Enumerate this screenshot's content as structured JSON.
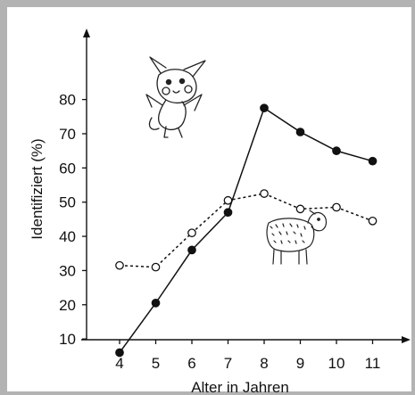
{
  "chart_data": {
    "type": "line",
    "xlabel": "Alter in Jahren",
    "ylabel": "Identifiziert (%)",
    "x": [
      4,
      5,
      6,
      7,
      8,
      9,
      10,
      11
    ],
    "xticks": [
      "4",
      "5",
      "6",
      "7",
      "8",
      "9",
      "10",
      "11"
    ],
    "yticks": [
      "10",
      "20",
      "30",
      "40",
      "50",
      "60",
      "70",
      "80"
    ],
    "ylim": [
      0,
      90
    ],
    "series": [
      {
        "style": "solid-filled",
        "values": [
          6,
          20.5,
          36,
          47,
          77.5,
          70.5,
          65,
          62
        ]
      },
      {
        "style": "dashed-open",
        "values": [
          31.5,
          31,
          41,
          50.5,
          52.5,
          48,
          48.5,
          44.5
        ]
      }
    ],
    "grid": false,
    "legend": "none",
    "annotations": [
      {
        "icon": "pikachu-icon"
      },
      {
        "icon": "sheep-icon"
      }
    ]
  }
}
